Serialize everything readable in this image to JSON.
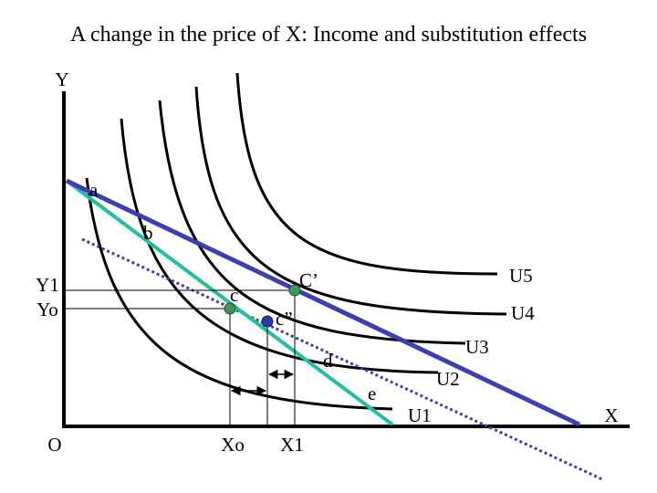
{
  "header": {
    "title": "A change in the price of X: Income and substitution effects"
  },
  "axes": {
    "y": "Y",
    "x": "X",
    "origin": "O"
  },
  "y_labels": [
    "Y1",
    "Yo"
  ],
  "x_labels": [
    "Xo",
    "X1"
  ],
  "curves": [
    "U1",
    "U2",
    "U3",
    "U4",
    "U5"
  ],
  "points": [
    "a",
    "b",
    "c",
    "C’",
    "c”",
    "d",
    "e"
  ]
}
